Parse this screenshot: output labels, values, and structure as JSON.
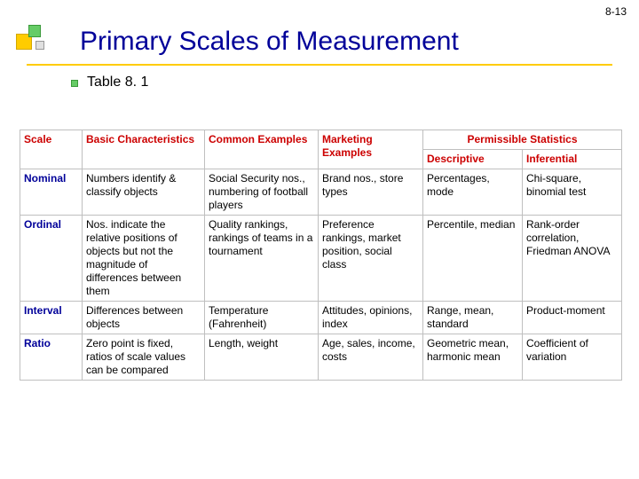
{
  "page_number": "8-13",
  "title": "Primary Scales of Measurement",
  "subtitle": "Table 8. 1",
  "colors": {
    "title": "#000099",
    "header_text": "#cc0000",
    "rowlabel_text": "#000099",
    "underline": "#ffcc00",
    "cell_border": "#bfbfbf",
    "background": "#ffffff"
  },
  "table": {
    "headers": {
      "scale": "Scale",
      "basic": "Basic Characteristics",
      "common": "Common Examples",
      "marketing": "Marketing Examples",
      "permissible_title": "Permissible Statistics",
      "descriptive": "Descriptive",
      "inferential": "Inferential"
    },
    "rows": [
      {
        "scale": "Nominal",
        "basic": "Numbers identify & classify objects",
        "common": "Social Security nos., numbering of football players",
        "marketing": "Brand nos., store types",
        "descriptive": "Percentages, mode",
        "inferential": "Chi-square, binomial test"
      },
      {
        "scale": "Ordinal",
        "basic": "Nos. indicate the relative positions of objects but not the magnitude of differences between them",
        "common": "Quality rankings, rankings of teams in a tournament",
        "marketing": "Preference rankings, market position, social class",
        "descriptive": "Percentile, median",
        "inferential": "Rank-order correlation, Friedman ANOVA"
      },
      {
        "scale": "Interval",
        "basic": "Differences between objects",
        "common": "Temperature (Fahrenheit)",
        "marketing": "Attitudes, opinions, index",
        "descriptive": "Range, mean, standard",
        "inferential": "Product-moment"
      },
      {
        "scale": "Ratio",
        "basic": "Zero point is fixed, ratios of scale values can be compared",
        "common": "Length, weight",
        "marketing": "Age, sales, income, costs",
        "descriptive": "Geometric mean, harmonic mean",
        "inferential": "Coefficient of variation"
      }
    ]
  }
}
